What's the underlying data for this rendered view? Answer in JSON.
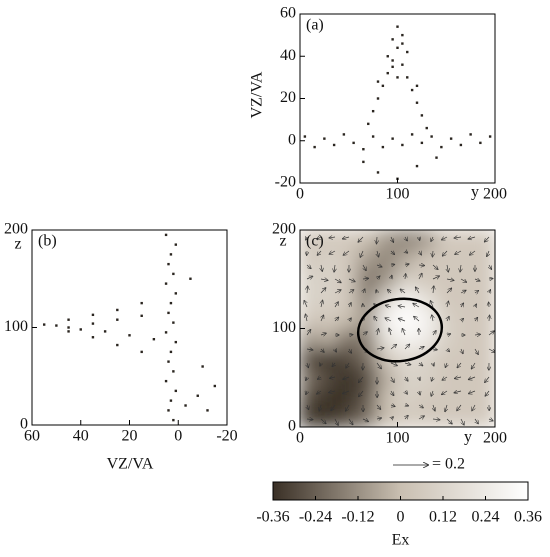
{
  "chart_data": [
    {
      "type": "scatter",
      "annotation": "(a)",
      "xlabel": "y",
      "ylabel": "VZ/VA",
      "color": "#2a2520",
      "xlim": [
        0,
        200
      ],
      "xticks": [
        0,
        100,
        200
      ],
      "ylim": [
        -20,
        60
      ],
      "yticks": [
        -20,
        0,
        20,
        40,
        60
      ],
      "x": [
        5,
        15,
        25,
        35,
        45,
        55,
        65,
        75,
        85,
        95,
        105,
        115,
        125,
        135,
        145,
        155,
        165,
        175,
        185,
        195,
        70,
        75,
        80,
        85,
        90,
        95,
        100,
        105,
        110,
        115,
        120,
        125,
        130,
        80,
        90,
        95,
        100,
        105,
        110,
        120,
        95,
        100,
        105,
        65,
        80,
        100,
        120,
        140
      ],
      "values": [
        2,
        -3,
        1,
        -2,
        3,
        -1,
        -4,
        2,
        -3,
        1,
        -2,
        3,
        -1,
        2,
        -3,
        1,
        -2,
        3,
        -1,
        2,
        8,
        14,
        20,
        26,
        32,
        38,
        44,
        36,
        30,
        24,
        18,
        12,
        6,
        28,
        40,
        48,
        54,
        50,
        42,
        26,
        35,
        30,
        46,
        -10,
        -15,
        -18,
        -12,
        -8
      ]
    },
    {
      "type": "scatter",
      "annotation": "(b)",
      "xlabel": "VZ/VA",
      "ylabel": "z",
      "color": "#2a2520",
      "xlim": [
        60,
        -20
      ],
      "xticks": [
        60,
        40,
        20,
        0,
        -20
      ],
      "ylim": [
        0,
        200
      ],
      "yticks": [
        0,
        100,
        200
      ],
      "x": [
        2,
        4,
        3,
        1,
        5,
        2,
        4,
        3,
        1,
        5,
        2,
        4,
        3,
        1,
        5,
        2,
        4,
        3,
        1,
        5,
        55,
        50,
        45,
        40,
        35,
        30,
        25,
        20,
        15,
        10,
        45,
        35,
        25,
        15,
        45,
        35,
        25,
        15,
        -3,
        -8,
        -12,
        -15,
        -10,
        -5
      ],
      "values": [
        5,
        15,
        25,
        35,
        45,
        55,
        65,
        75,
        85,
        95,
        105,
        115,
        125,
        135,
        145,
        155,
        165,
        175,
        185,
        195,
        103,
        102,
        100,
        98,
        104,
        96,
        108,
        92,
        112,
        88,
        108,
        113,
        118,
        125,
        96,
        90,
        82,
        75,
        20,
        30,
        15,
        40,
        60,
        150
      ]
    },
    {
      "type": "heatmap",
      "annotation": "(c)",
      "xlabel": "y",
      "ylabel": "z",
      "colorbar_label": "Ex",
      "arrow_legend": "= 0.2",
      "xlim": [
        0,
        200
      ],
      "xticks": [
        0,
        100,
        200
      ],
      "ylim": [
        0,
        200
      ],
      "yticks": [
        0,
        100,
        200
      ],
      "clim": [
        -0.36,
        0.36
      ],
      "colorbar_ticks": [
        -0.36,
        -0.24,
        -0.12,
        0,
        0.12,
        0.24,
        0.36
      ],
      "colormap": [
        "#3a3026",
        "#c9bfb1",
        "#ffffff"
      ],
      "z": [
        [
          -0.36,
          -0.36,
          -0.3,
          -0.2,
          0,
          0.05,
          0.05,
          0.05,
          0.05,
          0.05
        ],
        [
          -0.3,
          -0.36,
          -0.36,
          -0.25,
          0,
          0.1,
          0.05,
          0.05,
          0.05,
          0.05
        ],
        [
          -0.2,
          -0.3,
          -0.36,
          -0.3,
          -0.05,
          0.1,
          0.1,
          0.05,
          0.05,
          0.05
        ],
        [
          -0.3,
          -0.36,
          -0.3,
          -0.2,
          0.05,
          0.15,
          0.1,
          0.05,
          0.05,
          0.05
        ],
        [
          -0.1,
          -0.05,
          -0.2,
          -0.15,
          0.2,
          0.3,
          0.25,
          0.1,
          0.05,
          0.05
        ],
        [
          0.05,
          0.05,
          0,
          -0.1,
          0.3,
          0.36,
          0.3,
          0.1,
          0.05,
          0.05
        ],
        [
          0.1,
          0.1,
          0.05,
          -0.15,
          0.15,
          0.3,
          0.2,
          0.05,
          0.05,
          0.05
        ],
        [
          0.1,
          0.1,
          0.05,
          -0.2,
          -0.1,
          0.1,
          0.05,
          0.05,
          0.05,
          0.05
        ],
        [
          0.05,
          0.1,
          0.05,
          -0.1,
          -0.15,
          -0.05,
          0.05,
          0.05,
          0.05,
          0.05
        ],
        [
          0.05,
          0.05,
          0.05,
          0,
          -0.1,
          -0.15,
          -0.1,
          0.05,
          0.05,
          0.05
        ]
      ]
    }
  ]
}
